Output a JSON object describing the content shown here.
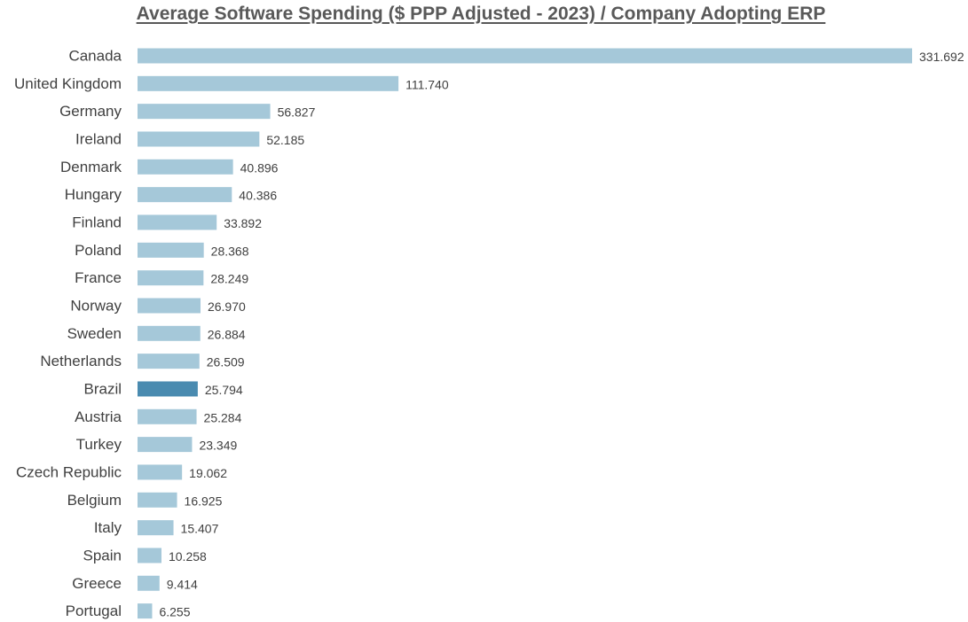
{
  "chart_data": {
    "type": "bar",
    "orientation": "horizontal",
    "title": "Average Software Spending ($ PPP Adjusted - 2023) / Company Adopting ERP",
    "categories": [
      "Canada",
      "United Kingdom",
      "Germany",
      "Ireland",
      "Denmark",
      "Hungary",
      "Finland",
      "Poland",
      "France",
      "Norway",
      "Sweden",
      "Netherlands",
      "Brazil",
      "Austria",
      "Turkey",
      "Czech Republic",
      "Belgium",
      "Italy",
      "Spain",
      "Greece",
      "Portugal"
    ],
    "values": [
      331.692,
      111.74,
      56.827,
      52.185,
      40.896,
      40.386,
      33.892,
      28.368,
      28.249,
      26.97,
      26.884,
      26.509,
      25.794,
      25.284,
      23.349,
      19.062,
      16.925,
      15.407,
      10.258,
      9.414,
      6.255
    ],
    "value_labels": [
      "331.692",
      "111.740",
      "56.827",
      "52.185",
      "40.896",
      "40.386",
      "33.892",
      "28.368",
      "28.249",
      "26.970",
      "26.884",
      "26.509",
      "25.794",
      "25.284",
      "23.349",
      "19.062",
      "16.925",
      "15.407",
      "10.258",
      "9.414",
      "6.255"
    ],
    "highlight_category": "Brazil",
    "bar_color": "#a5c8d9",
    "highlight_color": "#4a8bb0",
    "label_color": "#404040",
    "title_color": "#595959",
    "xlim": [
      0,
      331.692
    ],
    "grid": false,
    "legend": "none"
  }
}
